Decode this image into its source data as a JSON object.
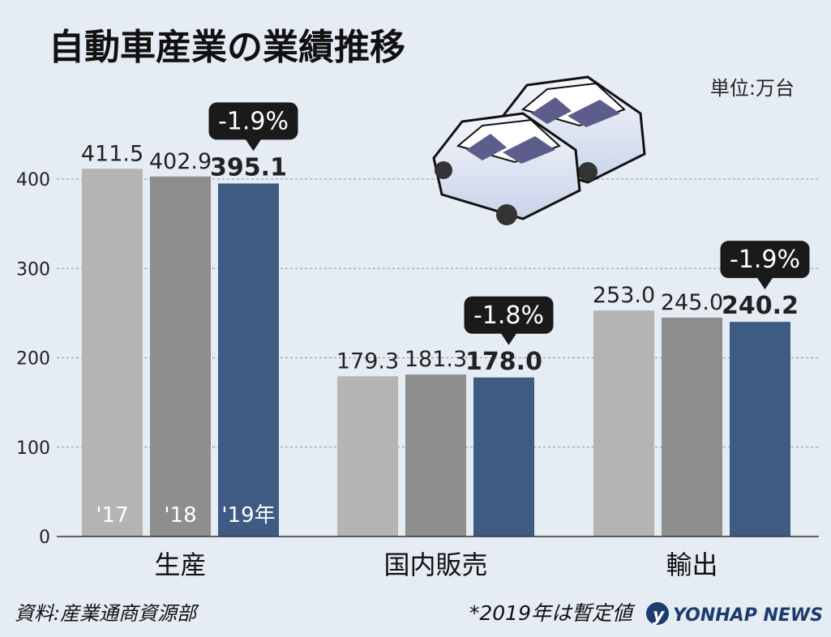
{
  "title": "自動車産業の業績推移",
  "unit": "単位:万台",
  "source": "資料:産業通商資源部",
  "note": "*2019年は暫定値",
  "logo": "YONHAP NEWS",
  "colors": {
    "bar_2017": "#b4b4b4",
    "bar_2018": "#8e8e8e",
    "bar_2019": "#3e5b84",
    "callout": "#1a1a1a",
    "background": "#e6ecf4"
  },
  "chart_data": {
    "type": "bar",
    "title": "自動車産業の業績推移",
    "categories": [
      "生産",
      "国内販売",
      "輸出"
    ],
    "series": [
      {
        "name": "'17",
        "values": [
          411.5,
          179.3,
          253.0
        ]
      },
      {
        "name": "'18",
        "values": [
          402.9,
          181.3,
          245.0
        ]
      },
      {
        "name": "'19年",
        "values": [
          395.1,
          178.0,
          240.2
        ]
      }
    ],
    "value_labels": [
      [
        "411.5",
        "402.9",
        "395.1"
      ],
      [
        "179.3",
        "181.3",
        "178.0"
      ],
      [
        "253.0",
        "245.0",
        "240.2"
      ]
    ],
    "changes": [
      "-1.9%",
      "-1.8%",
      "-1.9%"
    ],
    "yticks": [
      0,
      100,
      200,
      300,
      400
    ],
    "ytick_labels": [
      "0",
      "100",
      "200",
      "300",
      "400"
    ],
    "ylim": [
      0,
      400
    ],
    "xlabel": "",
    "ylabel": "",
    "grid": true
  }
}
